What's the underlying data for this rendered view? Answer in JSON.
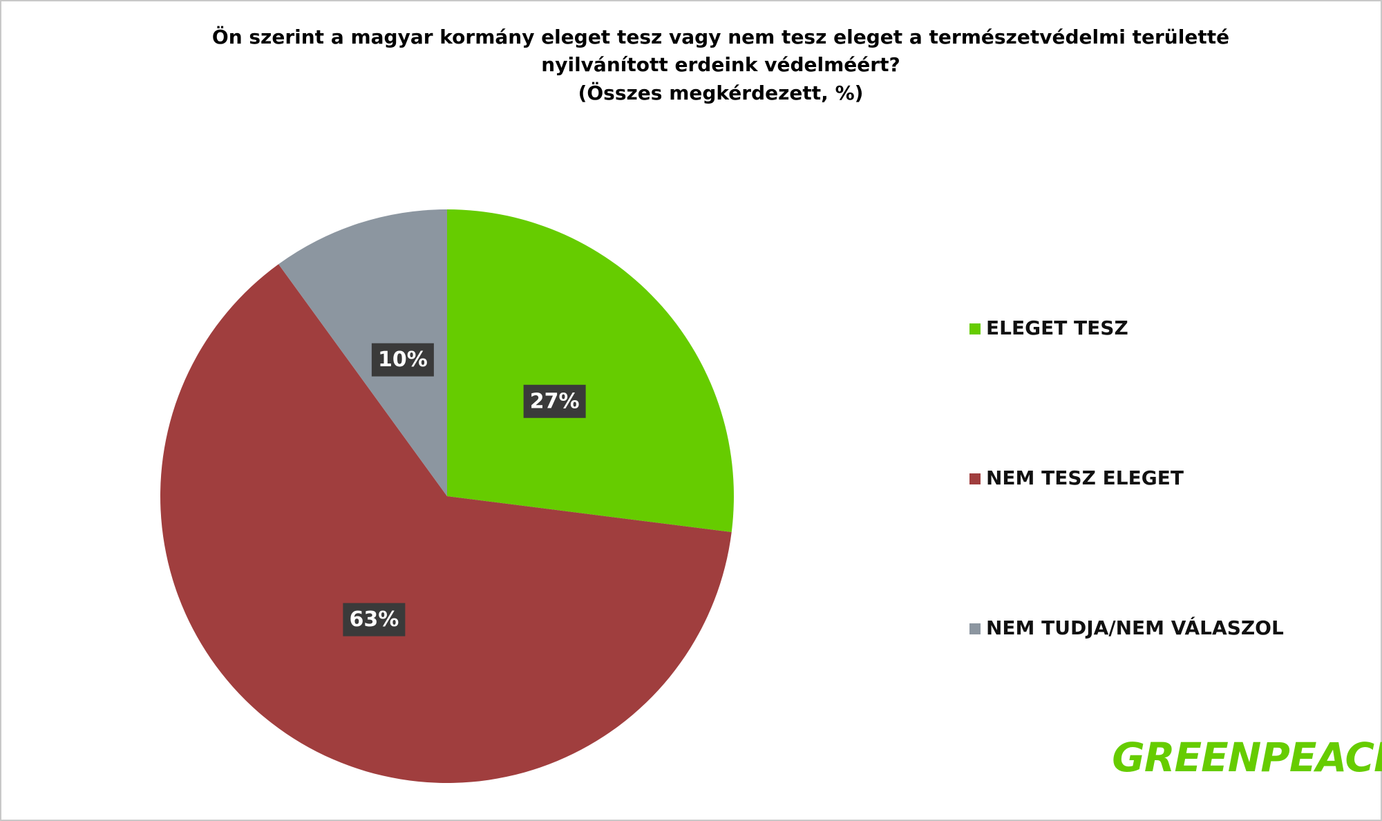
{
  "chart_data": {
    "type": "pie",
    "title": [
      "Ön szerint a magyar kormány eleget tesz vagy nem tesz eleget a természetvédelmi területté",
      "nyilvánított erdeink védelméért?"
    ],
    "subtitle": "(Összes megkérdezett, %)",
    "categories": [
      "ELEGET TESZ",
      "NEM TESZ ELEGET",
      "NEM TUDJA/NEM VÁLASZOL"
    ],
    "values": [
      27,
      63,
      10
    ],
    "value_labels": [
      "27%",
      "63%",
      "10%"
    ],
    "colors": [
      "#66cc00",
      "#a03e3e",
      "#8c96a0"
    ],
    "legend": "right",
    "logo": "GREENPEACE"
  }
}
